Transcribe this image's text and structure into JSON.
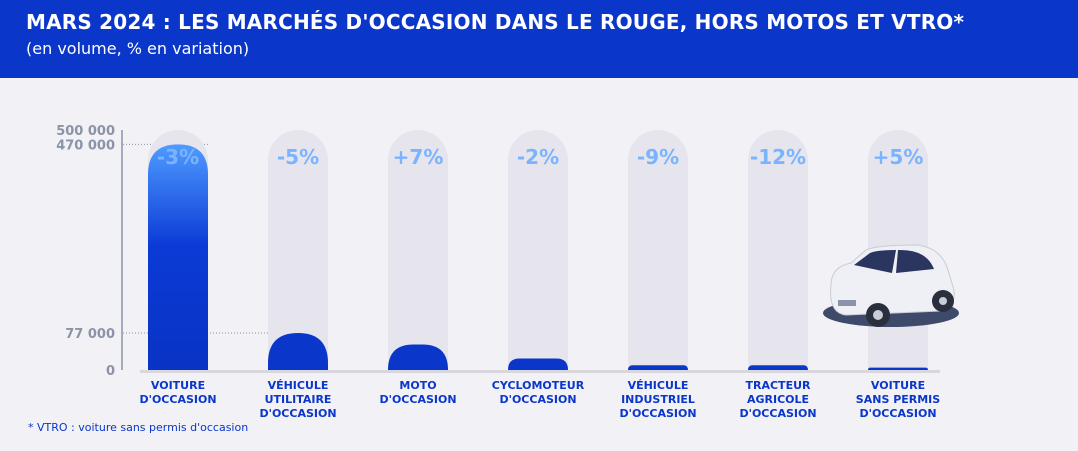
{
  "header": {
    "title": "MARS 2024 : LES MARCHÉS D'OCCASION DANS LE ROUGE, HORS MOTOS ET VTRO*",
    "subtitle": "(en volume, % en variation)"
  },
  "footnote": "* VTRO : voiture sans permis d'occasion",
  "chart_data": {
    "type": "bar",
    "title": "MARS 2024 : LES MARCHÉS D'OCCASION DANS LE ROUGE, HORS MOTOS ET VTRO*",
    "subtitle": "(en volume, % en variation)",
    "categories": [
      "VOITURE\nD'OCCASION",
      "VÉHICULE UTILITAIRE\nD'OCCASION",
      "MOTO\nD'OCCASION",
      "CYCLOMOTEUR\nD'OCCASION",
      "VÉHICULE\nINDUSTRIEL\nD'OCCASION",
      "TRACTEUR\nAGRICOLE\nD'OCCASION",
      "VOITURE\nSANS PERMIS\nD'OCCASION"
    ],
    "values": [
      470000,
      77000,
      53000,
      24000,
      10000,
      10000,
      5000
    ],
    "variations": [
      "-3%",
      "-5%",
      "+7%",
      "-2%",
      "-9%",
      "-12%",
      "+5%"
    ],
    "yticks": [
      {
        "value": 0,
        "label": "0"
      },
      {
        "value": 77000,
        "label": "77 000"
      },
      {
        "value": 470000,
        "label": "470 000"
      },
      {
        "value": 500000,
        "label": "500 000"
      }
    ],
    "ylim": [
      0,
      500000
    ],
    "grid": false,
    "colors": {
      "bar_top": "#4f9bff",
      "bar": "#0a36c9",
      "variation": "#7ab4ff",
      "pill": "#e6e5ee",
      "axis": "#8a94a6"
    }
  }
}
